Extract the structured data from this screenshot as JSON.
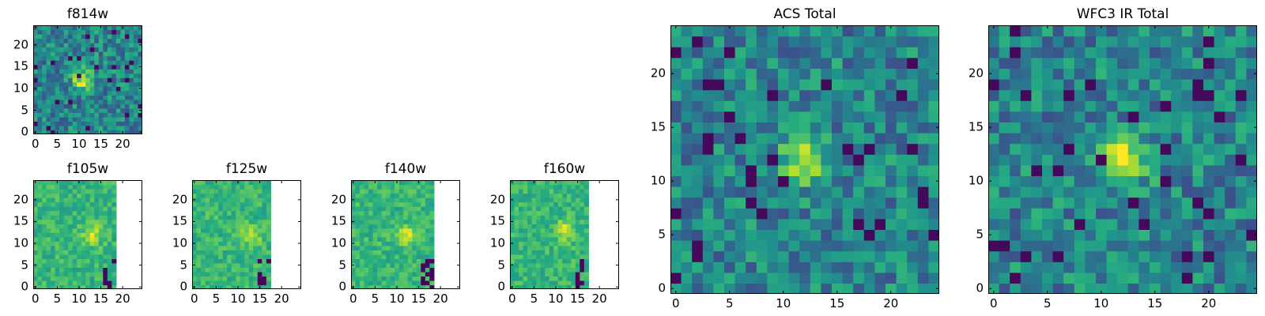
{
  "chart_data": [
    {
      "type": "heatmap",
      "title": "f814w",
      "xlabel": "",
      "ylabel": "",
      "xlim": [
        -0.5,
        24.5
      ],
      "ylim": [
        -0.5,
        24.5
      ],
      "xticks": [
        0,
        5,
        10,
        15,
        20
      ],
      "yticks": [
        0,
        5,
        10,
        15,
        20
      ],
      "grid": false,
      "colormap": "viridis",
      "source_peak": [
        11,
        12
      ],
      "masked_from_column": null
    },
    {
      "type": "heatmap",
      "title": "f105w",
      "xlabel": "",
      "ylabel": "",
      "xlim": [
        -0.5,
        24.5
      ],
      "ylim": [
        -0.5,
        24.5
      ],
      "xticks": [
        0,
        5,
        10,
        15,
        20
      ],
      "yticks": [
        0,
        5,
        10,
        15,
        20
      ],
      "grid": false,
      "colormap": "viridis",
      "source_peak": [
        13,
        12
      ],
      "masked_from_column": 19
    },
    {
      "type": "heatmap",
      "title": "f125w",
      "xlabel": "",
      "ylabel": "",
      "xlim": [
        -0.5,
        24.5
      ],
      "ylim": [
        -0.5,
        24.5
      ],
      "xticks": [
        0,
        5,
        10,
        15,
        20
      ],
      "yticks": [
        0,
        5,
        10,
        15,
        20
      ],
      "grid": false,
      "colormap": "viridis",
      "source_peak": [
        13,
        12
      ],
      "masked_from_column": 18
    },
    {
      "type": "heatmap",
      "title": "f140w",
      "xlabel": "",
      "ylabel": "",
      "xlim": [
        -0.5,
        24.5
      ],
      "ylim": [
        -0.5,
        24.5
      ],
      "xticks": [
        0,
        5,
        10,
        15,
        20
      ],
      "yticks": [
        0,
        5,
        10,
        15,
        20
      ],
      "grid": false,
      "colormap": "viridis",
      "source_peak": [
        12,
        12
      ],
      "masked_from_column": 19
    },
    {
      "type": "heatmap",
      "title": "f160w",
      "xlabel": "",
      "ylabel": "",
      "xlim": [
        -0.5,
        24.5
      ],
      "ylim": [
        -0.5,
        24.5
      ],
      "xticks": [
        0,
        5,
        10,
        15,
        20
      ],
      "yticks": [
        0,
        5,
        10,
        15,
        20
      ],
      "grid": false,
      "colormap": "viridis",
      "source_peak": [
        12,
        13
      ],
      "masked_from_column": 18
    },
    {
      "type": "heatmap",
      "title": "ACS Total",
      "xlabel": "",
      "ylabel": "",
      "xlim": [
        -0.5,
        24.5
      ],
      "ylim": [
        -0.5,
        24.5
      ],
      "xticks": [
        0,
        5,
        10,
        15,
        20
      ],
      "yticks": [
        0,
        5,
        10,
        15,
        20
      ],
      "grid": false,
      "colormap": "viridis",
      "source_peak": [
        12,
        12
      ],
      "masked_from_column": null
    },
    {
      "type": "heatmap",
      "title": "WFC3 IR Total",
      "xlabel": "",
      "ylabel": "",
      "xlim": [
        -0.5,
        24.5
      ],
      "ylim": [
        -0.5,
        24.5
      ],
      "xticks": [
        0,
        5,
        10,
        15,
        20
      ],
      "yticks": [
        0,
        5,
        10,
        15,
        20
      ],
      "grid": false,
      "colormap": "viridis",
      "source_peak": [
        12,
        12
      ],
      "masked_from_column": null
    }
  ],
  "colors": {
    "viridis_dark": "#440154",
    "viridis_mid": "#21918c",
    "viridis_bright": "#fde725"
  }
}
